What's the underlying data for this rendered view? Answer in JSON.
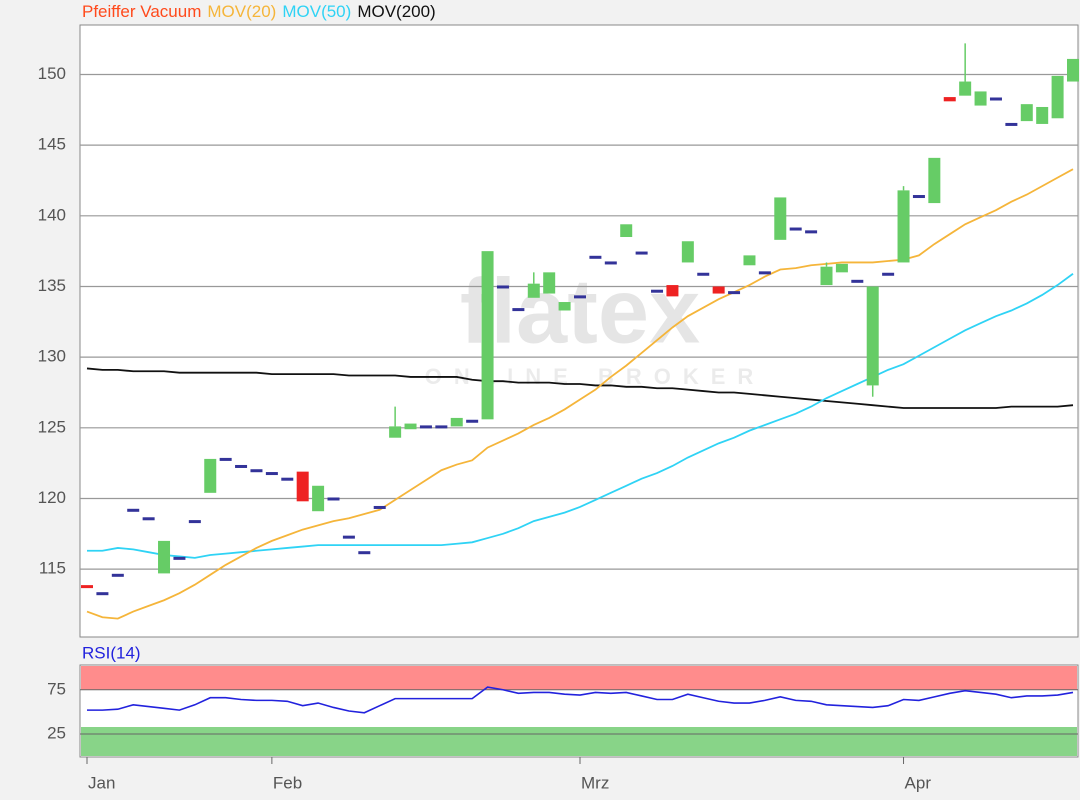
{
  "chart_data": [
    {
      "type": "candlestick",
      "name": "Pfeiffer Vacuum",
      "color": "#ff4a1c",
      "up_color": "#66cc66",
      "down_color": "#ee2222",
      "flat_color": "#333399",
      "open": [
        113.8,
        113.3,
        114.6,
        119.2,
        118.6,
        114.7,
        115.8,
        118.4,
        120.4,
        122.8,
        122.3,
        122.0,
        121.8,
        121.4,
        121.9,
        119.1,
        120.0,
        117.3,
        116.2,
        119.4,
        124.3,
        124.9,
        125.1,
        125.1,
        125.1,
        125.5,
        125.6,
        135.0,
        133.4,
        134.2,
        134.5,
        133.3,
        134.3,
        137.1,
        136.7,
        138.5,
        137.4,
        134.7,
        135.1,
        136.7,
        135.9,
        135.0,
        134.6,
        136.5,
        136.0,
        138.3,
        139.1,
        138.9,
        135.1,
        136.0,
        135.4,
        128.0,
        135.9,
        136.7,
        141.4,
        140.9,
        148.4,
        148.5,
        147.8,
        148.3,
        146.5,
        146.7,
        146.5,
        146.9,
        149.5
      ],
      "close": [
        113.6,
        113.3,
        114.6,
        119.2,
        118.6,
        117.0,
        115.8,
        118.4,
        122.8,
        122.8,
        122.3,
        122.0,
        121.8,
        121.4,
        119.8,
        120.9,
        120.0,
        117.3,
        116.2,
        119.4,
        125.1,
        125.3,
        125.1,
        125.1,
        125.7,
        125.5,
        137.5,
        135.0,
        133.4,
        135.2,
        136.0,
        133.9,
        134.3,
        137.1,
        136.7,
        139.4,
        137.4,
        134.7,
        134.3,
        138.2,
        135.9,
        134.5,
        134.6,
        137.2,
        136.0,
        141.3,
        139.1,
        138.9,
        136.4,
        136.6,
        135.4,
        135.0,
        135.9,
        141.8,
        141.4,
        144.1,
        148.1,
        149.5,
        148.8,
        148.3,
        146.5,
        147.9,
        147.7,
        149.9,
        151.1
      ],
      "high": [
        null,
        null,
        null,
        null,
        null,
        null,
        null,
        null,
        null,
        null,
        null,
        null,
        null,
        null,
        null,
        null,
        null,
        null,
        null,
        null,
        126.5,
        null,
        null,
        null,
        null,
        null,
        null,
        null,
        null,
        136.0,
        null,
        null,
        null,
        null,
        null,
        null,
        null,
        null,
        null,
        null,
        null,
        null,
        null,
        null,
        null,
        null,
        null,
        null,
        136.7,
        null,
        null,
        null,
        null,
        142.1,
        null,
        null,
        null,
        152.2,
        null,
        null,
        null,
        null,
        null,
        null,
        null
      ],
      "low": [
        null,
        null,
        null,
        null,
        null,
        null,
        null,
        null,
        null,
        null,
        null,
        null,
        null,
        null,
        null,
        null,
        null,
        null,
        null,
        null,
        null,
        null,
        null,
        null,
        null,
        null,
        null,
        null,
        null,
        null,
        null,
        null,
        null,
        null,
        null,
        null,
        null,
        null,
        null,
        null,
        null,
        null,
        null,
        null,
        null,
        null,
        null,
        null,
        null,
        null,
        null,
        127.2,
        null,
        null,
        null,
        null,
        null,
        null,
        null,
        null,
        null,
        null,
        null,
        null,
        null
      ],
      "series": [
        {
          "name": "MOV(20)",
          "color": "#f5b53a",
          "values": [
            112.0,
            111.6,
            111.5,
            112.0,
            112.4,
            112.8,
            113.3,
            113.9,
            114.6,
            115.3,
            115.9,
            116.5,
            117.0,
            117.4,
            117.8,
            118.1,
            118.4,
            118.6,
            118.9,
            119.2,
            119.9,
            120.6,
            121.3,
            122.0,
            122.4,
            122.7,
            123.6,
            124.1,
            124.6,
            125.2,
            125.7,
            126.3,
            127.0,
            127.7,
            128.6,
            129.4,
            130.3,
            131.2,
            132.1,
            132.9,
            133.5,
            134.1,
            134.6,
            135.1,
            135.7,
            136.2,
            136.3,
            136.5,
            136.6,
            136.7,
            136.7,
            136.7,
            136.8,
            136.9,
            137.2,
            138.0,
            138.7,
            139.4,
            139.9,
            140.4,
            141.0,
            141.5,
            142.1,
            142.7,
            143.3
          ]
        },
        {
          "name": "MOV(50)",
          "color": "#2fd3f5",
          "values": [
            116.3,
            116.3,
            116.5,
            116.4,
            116.2,
            116.0,
            115.9,
            115.8,
            116.0,
            116.1,
            116.2,
            116.3,
            116.4,
            116.5,
            116.6,
            116.7,
            116.7,
            116.7,
            116.7,
            116.7,
            116.7,
            116.7,
            116.7,
            116.7,
            116.8,
            116.9,
            117.2,
            117.5,
            117.9,
            118.4,
            118.7,
            119.0,
            119.4,
            119.9,
            120.4,
            120.9,
            121.4,
            121.8,
            122.3,
            122.9,
            123.4,
            123.9,
            124.3,
            124.8,
            125.2,
            125.6,
            126.0,
            126.5,
            127.1,
            127.6,
            128.1,
            128.6,
            129.1,
            129.5,
            130.1,
            130.7,
            131.3,
            131.9,
            132.4,
            132.9,
            133.3,
            133.8,
            134.4,
            135.1,
            135.9
          ]
        },
        {
          "name": "MOV(200)",
          "color": "#111111",
          "values": [
            129.2,
            129.1,
            129.1,
            129.0,
            129.0,
            129.0,
            128.9,
            128.9,
            128.9,
            128.9,
            128.9,
            128.9,
            128.8,
            128.8,
            128.8,
            128.8,
            128.8,
            128.7,
            128.7,
            128.7,
            128.7,
            128.6,
            128.6,
            128.6,
            128.6,
            128.4,
            128.3,
            128.3,
            128.2,
            128.2,
            128.2,
            128.1,
            128.1,
            128.0,
            128.0,
            127.9,
            127.9,
            127.8,
            127.8,
            127.7,
            127.6,
            127.5,
            127.5,
            127.4,
            127.3,
            127.2,
            127.1,
            127.0,
            126.9,
            126.8,
            126.7,
            126.6,
            126.5,
            126.4,
            126.4,
            126.4,
            126.4,
            126.4,
            126.4,
            126.4,
            126.5,
            126.5,
            126.5,
            126.5,
            126.6
          ]
        }
      ],
      "ylim": [
        110.2,
        153.5
      ],
      "yticks": [
        115,
        120,
        125,
        130,
        135,
        140,
        145,
        150
      ],
      "grid": true,
      "watermark": "flatex",
      "watermark_subtitle": "ONLINE BROKER"
    },
    {
      "type": "line",
      "title": "RSI(14)",
      "color": "#2222dd",
      "categories": [
        "Jan",
        null,
        null,
        null,
        null,
        null,
        null,
        null,
        null,
        null,
        null,
        null,
        "Feb",
        null,
        null,
        null,
        null,
        null,
        null,
        null,
        null,
        null,
        null,
        null,
        null,
        null,
        null,
        null,
        null,
        null,
        null,
        null,
        "Mrz",
        null,
        null,
        null,
        null,
        null,
        null,
        null,
        null,
        null,
        null,
        null,
        null,
        null,
        null,
        null,
        null,
        null,
        null,
        null,
        null,
        "Apr",
        null,
        null,
        null,
        null,
        null,
        null,
        null,
        null,
        null,
        null,
        null
      ],
      "values": [
        52,
        52,
        53,
        58,
        56,
        54,
        52,
        58,
        66,
        66,
        64,
        63,
        63,
        62,
        57,
        60,
        55,
        51,
        49,
        57,
        65,
        65,
        65,
        65,
        65,
        65,
        78,
        75,
        71,
        72,
        72,
        70,
        69,
        72,
        71,
        72,
        68,
        64,
        64,
        70,
        66,
        62,
        60,
        60,
        63,
        67,
        63,
        62,
        58,
        57,
        56,
        55,
        57,
        64,
        63,
        67,
        71,
        74,
        72,
        70,
        66,
        68,
        68,
        69,
        72
      ],
      "ylim": [
        -1,
        103
      ],
      "yticks": [
        25,
        75
      ],
      "upper_band_color": "#ff8c8c",
      "lower_band_color": "#88d488"
    }
  ]
}
